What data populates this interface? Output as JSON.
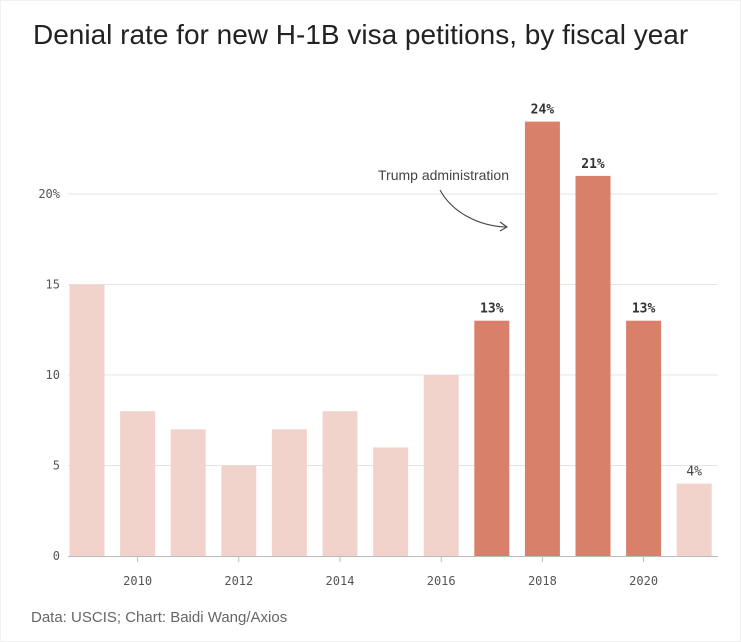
{
  "title": "Denial rate for new H-1B visa petitions, by fiscal year",
  "source": "Data: USCIS; Chart: Baidi Wang/Axios",
  "colors": {
    "light_bar": "#f2d3cc",
    "dark_bar": "#d9806a",
    "grid": "#e4e4e4",
    "axis": "#bbbbbb",
    "arrow": "#444444"
  },
  "chart_data": {
    "type": "bar",
    "categories": [
      "2009",
      "2010",
      "2011",
      "2012",
      "2013",
      "2014",
      "2015",
      "2016",
      "2017",
      "2018",
      "2019",
      "2020",
      "2021"
    ],
    "values": [
      15,
      8,
      7,
      5,
      7,
      8,
      6,
      10,
      13,
      24,
      21,
      13,
      4
    ],
    "highlighted": [
      false,
      false,
      false,
      false,
      false,
      false,
      false,
      false,
      true,
      true,
      true,
      true,
      false
    ],
    "data_labels": [
      "",
      "",
      "",
      "",
      "",
      "",
      "",
      "",
      "13%",
      "24%",
      "21%",
      "13%",
      "4%"
    ],
    "x_tick_labels": [
      "2010",
      "2012",
      "2014",
      "2016",
      "2018",
      "2020"
    ],
    "y_ticks": [
      0,
      5,
      10,
      15,
      20
    ],
    "y_tick_labels": [
      "0",
      "5",
      "10",
      "15",
      "20%"
    ],
    "ylim": [
      0,
      25
    ],
    "grid": true,
    "annotation": {
      "text": "Trump administration",
      "target_category": "2018"
    }
  }
}
